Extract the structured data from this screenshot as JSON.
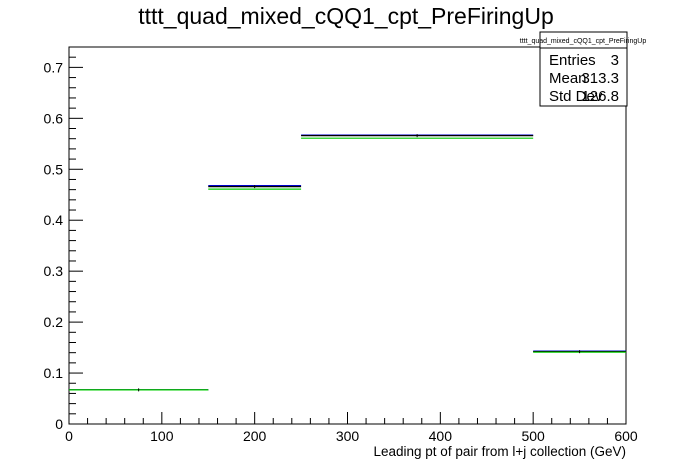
{
  "chart_data": {
    "type": "histogram-step",
    "title": "tttt_quad_mixed_cQQ1_cpt_PreFiringUp",
    "xlabel": "Leading pt of pair from l+j collection (GeV)",
    "ylabel": "",
    "xlim": [
      0,
      600
    ],
    "ylim": [
      0,
      0.74
    ],
    "x_ticks": [
      0,
      100,
      200,
      300,
      400,
      500,
      600
    ],
    "y_ticks": [
      0,
      0.1,
      0.2,
      0.3,
      0.4,
      0.5,
      0.6,
      0.7
    ],
    "bins": [
      {
        "x0": 0,
        "x1": 150,
        "y": 0.067
      },
      {
        "x0": 150,
        "x1": 250,
        "y": 0.466
      },
      {
        "x0": 250,
        "x1": 500,
        "y": 0.566
      },
      {
        "x0": 500,
        "x1": 600,
        "y": 0.142
      }
    ],
    "series": [
      {
        "color": "#000000",
        "values": [
          0.067,
          0.466,
          0.566,
          0.142
        ]
      },
      {
        "color": "#0000cc",
        "values": [
          0.067,
          0.468,
          0.567,
          0.143
        ]
      },
      {
        "color": "#00cc00",
        "values": [
          0.067,
          0.461,
          0.561,
          0.141
        ]
      }
    ],
    "stats_box": {
      "title": "tttt_quad_mixed_cQQ1_cpt_PreFiringUp",
      "rows": [
        {
          "label": "Entries",
          "value": "3"
        },
        {
          "label": "Mean",
          "value": "313.3"
        },
        {
          "label": "Std Dev",
          "value": "126.8"
        }
      ]
    },
    "grid": false
  }
}
